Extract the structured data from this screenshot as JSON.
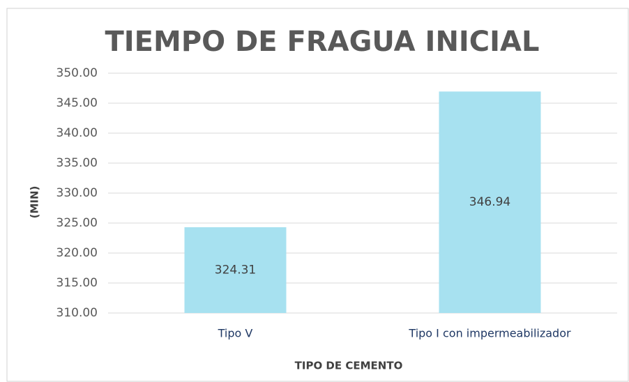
{
  "chart_data": {
    "type": "bar",
    "title": "TIEMPO DE FRAGUA INICIAL",
    "y_label": "(MIN)",
    "x_label": "TIPO DE CEMENTO",
    "categories": [
      "Tipo V",
      "Tipo I con impermeabilizador"
    ],
    "values": [
      324.31,
      346.94
    ],
    "color": "#a7e1f0",
    "ylim": [
      310,
      350
    ],
    "yticks": [
      {
        "value": 310,
        "label": "310.00"
      },
      {
        "value": 315,
        "label": "315.00"
      },
      {
        "value": 320,
        "label": "320.00"
      },
      {
        "value": 325,
        "label": "325.00"
      },
      {
        "value": 330,
        "label": "330.00"
      },
      {
        "value": 335,
        "label": "335.00"
      },
      {
        "value": 340,
        "label": "340.00"
      },
      {
        "value": 345,
        "label": "345.00"
      },
      {
        "value": 350,
        "label": "350.00"
      }
    ],
    "grid": true
  }
}
